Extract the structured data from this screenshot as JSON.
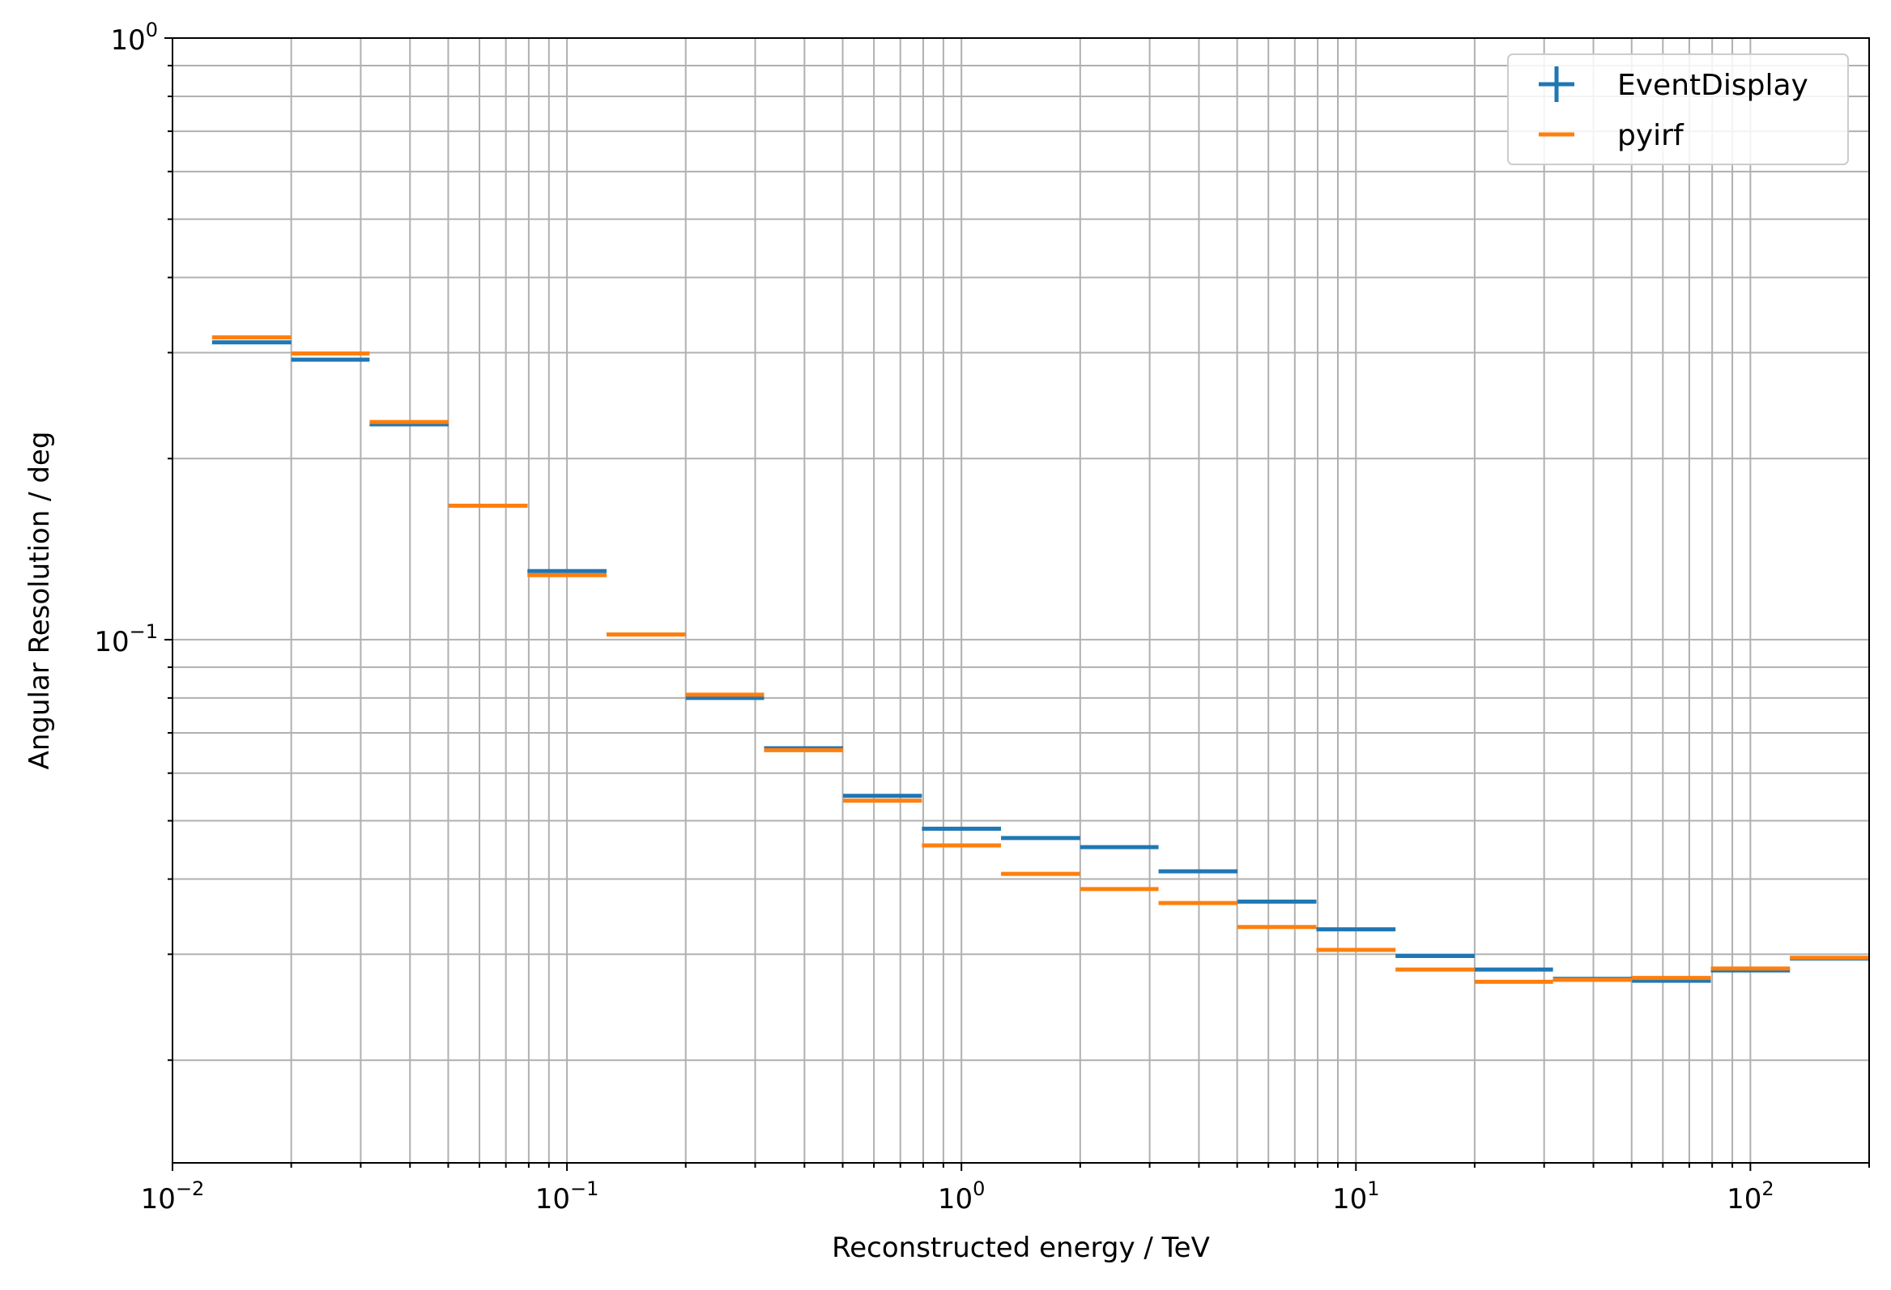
{
  "chart_data": {
    "type": "line",
    "xlabel": "Reconstructed energy / TeV",
    "ylabel": "Angular Resolution / deg",
    "x_scale": "log",
    "y_scale": "log",
    "xlim": [
      0.01,
      200
    ],
    "ylim": [
      0.0135,
      1.0
    ],
    "grid": true,
    "x_ticks": [
      {
        "value": 0.01,
        "base": "10",
        "exp": "−2"
      },
      {
        "value": 0.1,
        "base": "10",
        "exp": "−1"
      },
      {
        "value": 1,
        "base": "10",
        "exp": "0"
      },
      {
        "value": 10,
        "base": "10",
        "exp": "1"
      },
      {
        "value": 100,
        "base": "10",
        "exp": "2"
      }
    ],
    "y_ticks": [
      {
        "value": 0.1,
        "base": "10",
        "exp": "−1"
      },
      {
        "value": 1,
        "base": "10",
        "exp": "0"
      }
    ],
    "legend": {
      "placement": "upper-right"
    },
    "series": [
      {
        "name": "EventDisplay",
        "color": "#1f77b4",
        "marker": "errorbar",
        "bins": [
          [
            0.0126,
            0.02
          ],
          [
            0.02,
            0.0316
          ],
          [
            0.0316,
            0.0501
          ],
          [
            0.0501,
            0.0794
          ],
          [
            0.0794,
            0.126
          ],
          [
            0.126,
            0.2
          ],
          [
            0.2,
            0.316
          ],
          [
            0.316,
            0.501
          ],
          [
            0.501,
            0.794
          ],
          [
            0.794,
            1.26
          ],
          [
            1.26,
            2.0
          ],
          [
            2.0,
            3.16
          ],
          [
            3.16,
            5.01
          ],
          [
            5.01,
            7.94
          ],
          [
            7.94,
            12.6
          ],
          [
            12.6,
            20.0
          ],
          [
            20.0,
            31.6
          ],
          [
            31.6,
            50.1
          ],
          [
            50.1,
            79.4
          ],
          [
            79.4,
            126
          ],
          [
            126,
            200
          ]
        ],
        "values": [
          0.312,
          0.292,
          0.228,
          0.167,
          0.13,
          0.102,
          0.08,
          0.066,
          0.055,
          0.0485,
          0.0468,
          0.0452,
          0.0412,
          0.0367,
          0.033,
          0.0298,
          0.0283,
          0.0273,
          0.0271,
          0.0282,
          0.0295
        ]
      },
      {
        "name": "pyirf",
        "color": "#ff7f0e",
        "marker": "line",
        "bins": [
          [
            0.0126,
            0.02
          ],
          [
            0.02,
            0.0316
          ],
          [
            0.0316,
            0.0501
          ],
          [
            0.0501,
            0.0794
          ],
          [
            0.0794,
            0.126
          ],
          [
            0.126,
            0.2
          ],
          [
            0.2,
            0.316
          ],
          [
            0.316,
            0.501
          ],
          [
            0.501,
            0.794
          ],
          [
            0.794,
            1.26
          ],
          [
            1.26,
            2.0
          ],
          [
            2.0,
            3.16
          ],
          [
            3.16,
            5.01
          ],
          [
            5.01,
            7.94
          ],
          [
            7.94,
            12.6
          ],
          [
            12.6,
            20.0
          ],
          [
            20.0,
            31.6
          ],
          [
            31.6,
            50.1
          ],
          [
            50.1,
            79.4
          ],
          [
            79.4,
            126
          ],
          [
            126,
            200
          ]
        ],
        "values": [
          0.318,
          0.299,
          0.23,
          0.167,
          0.128,
          0.102,
          0.081,
          0.0655,
          0.054,
          0.0455,
          0.0408,
          0.0385,
          0.0365,
          0.0333,
          0.0305,
          0.0283,
          0.027,
          0.0272,
          0.0274,
          0.0284,
          0.0296
        ]
      }
    ]
  }
}
